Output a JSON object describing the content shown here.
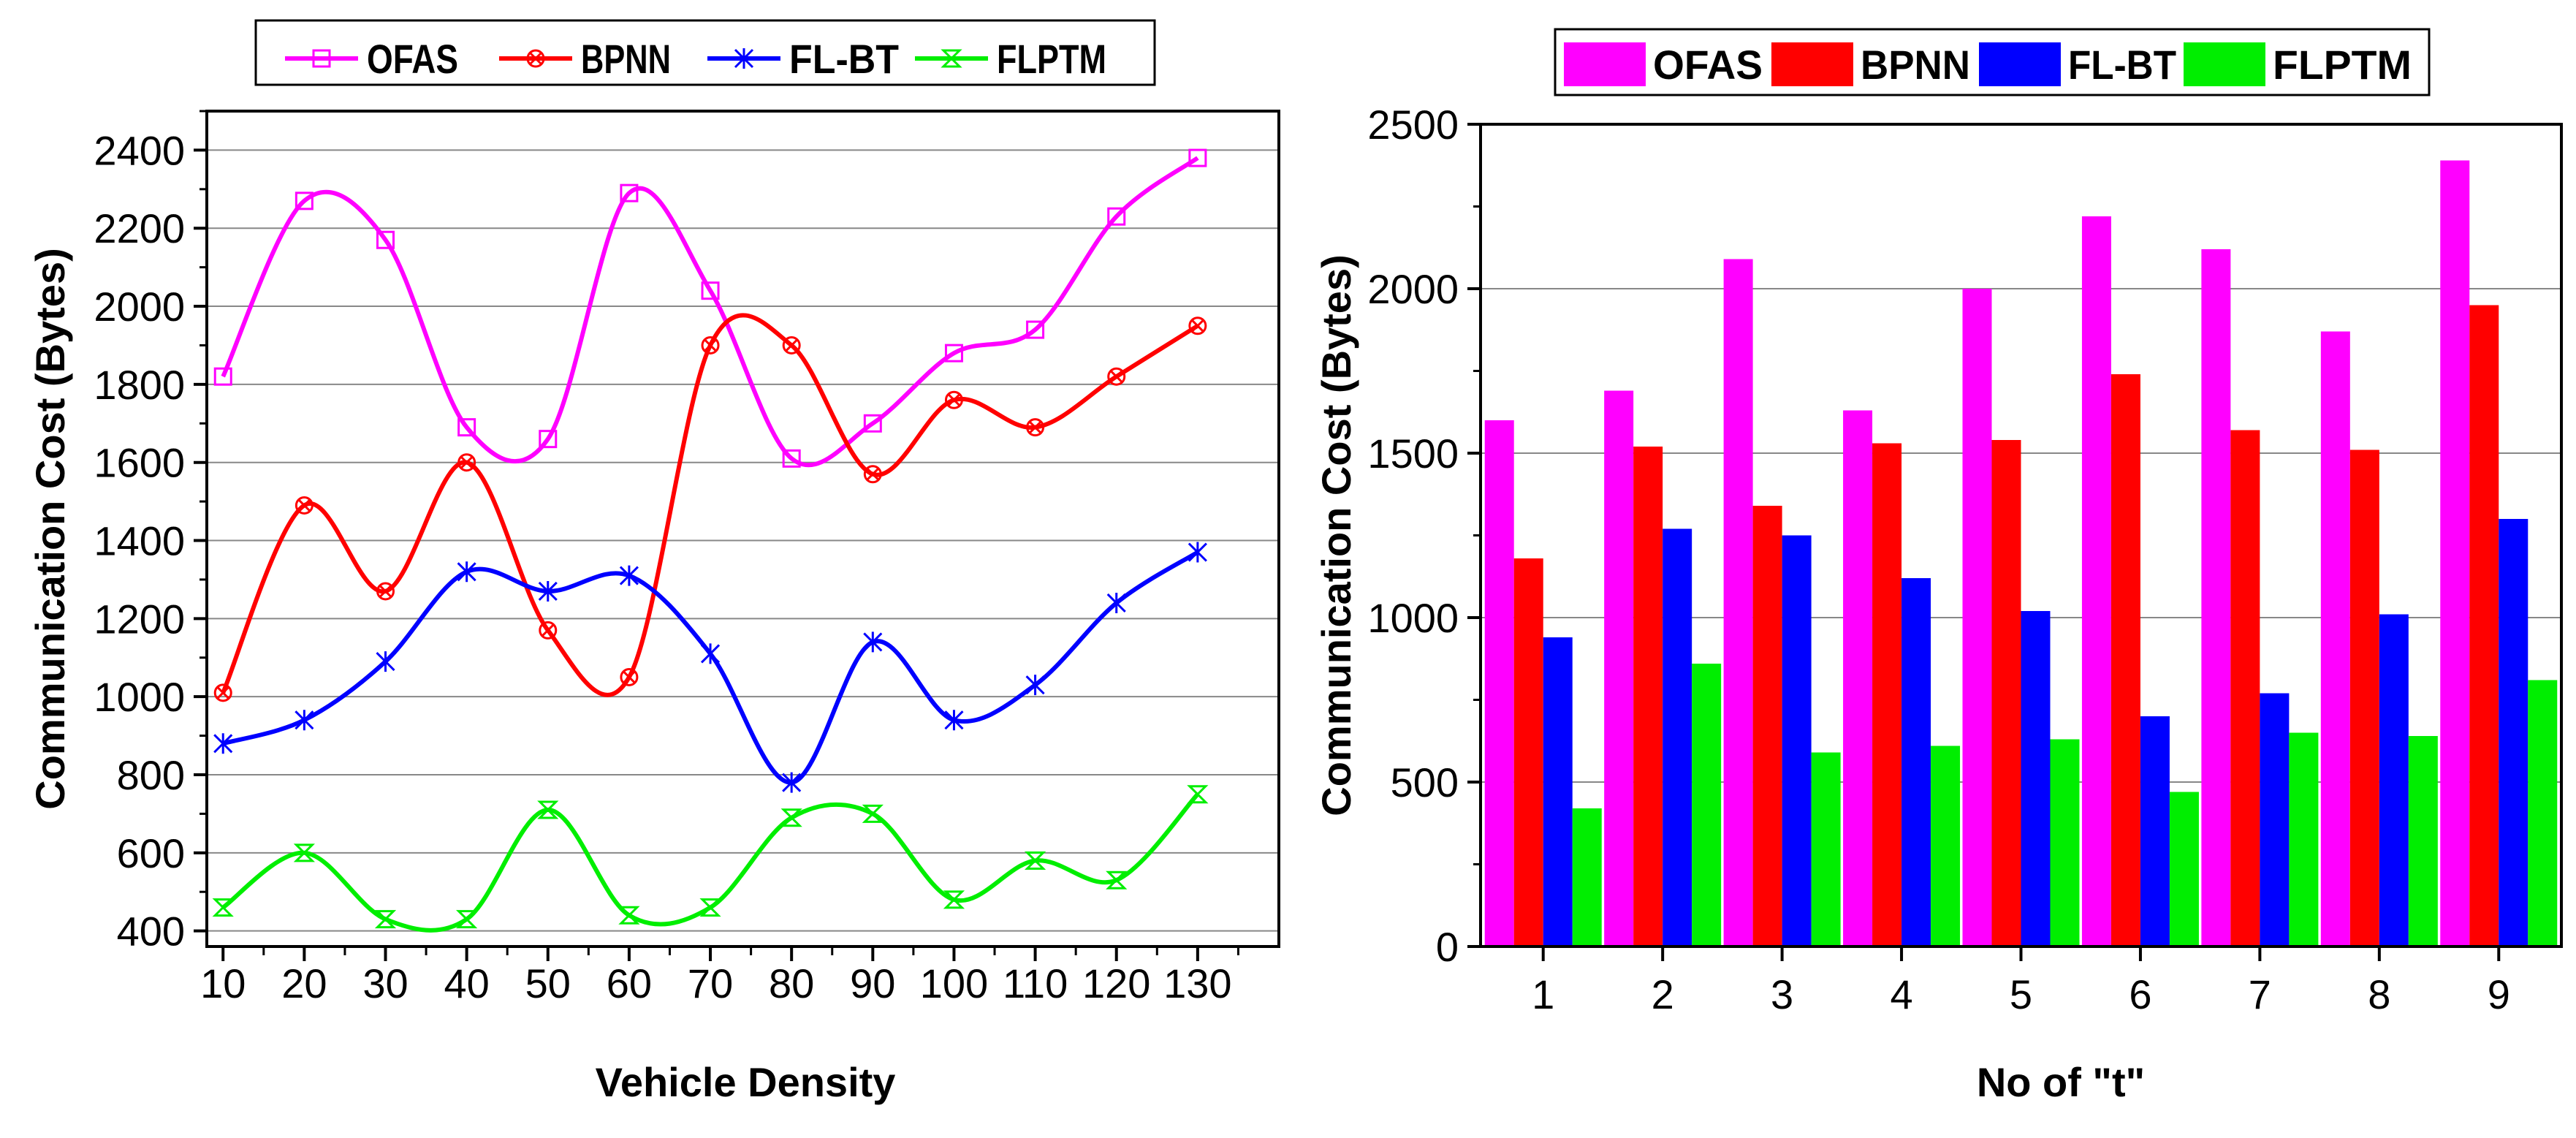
{
  "chart_data": [
    {
      "type": "line",
      "xlabel": "Vehicle Density",
      "ylabel": "Communication Cost (Bytes)",
      "x": [
        10,
        20,
        30,
        40,
        50,
        60,
        70,
        80,
        90,
        100,
        110,
        120,
        130
      ],
      "xlim": [
        8,
        140
      ],
      "ylim": [
        360,
        2500
      ],
      "xticks": [
        10,
        20,
        30,
        40,
        50,
        60,
        70,
        80,
        90,
        100,
        110,
        120,
        130
      ],
      "yticks": [
        400,
        600,
        800,
        1000,
        1200,
        1400,
        1600,
        1800,
        2000,
        2200,
        2400
      ],
      "grid": true,
      "legend": "top",
      "series": [
        {
          "name": "OFAS",
          "color": "#ff00ff",
          "marker": "square",
          "values": [
            1820,
            2270,
            2170,
            1690,
            1660,
            2290,
            2040,
            1610,
            1700,
            1880,
            1940,
            2230,
            2380
          ]
        },
        {
          "name": "BPNN",
          "color": "#ff0000",
          "marker": "circle-x",
          "values": [
            1010,
            1490,
            1270,
            1600,
            1170,
            1050,
            1900,
            1900,
            1570,
            1760,
            1690,
            1820,
            1950
          ]
        },
        {
          "name": "FL-BT",
          "color": "#0000ff",
          "marker": "star",
          "values": [
            880,
            940,
            1090,
            1320,
            1270,
            1310,
            1110,
            780,
            1140,
            940,
            1030,
            1240,
            1370
          ]
        },
        {
          "name": "FLPTM",
          "color": "#00ee00",
          "marker": "hourglass",
          "values": [
            460,
            600,
            430,
            430,
            710,
            440,
            460,
            690,
            700,
            480,
            580,
            530,
            750
          ]
        }
      ]
    },
    {
      "type": "bar",
      "xlabel": "No of \"t\"",
      "ylabel": "Communication Cost (Bytes)",
      "categories": [
        "1",
        "2",
        "3",
        "4",
        "5",
        "6",
        "7",
        "8",
        "9"
      ],
      "ylim": [
        0,
        2500
      ],
      "yticks": [
        0,
        500,
        1000,
        1500,
        2000,
        2500
      ],
      "grid": true,
      "legend": "top",
      "series": [
        {
          "name": "OFAS",
          "color": "#ff00ff",
          "values": [
            1600,
            1690,
            2090,
            1630,
            2000,
            2220,
            2120,
            1870,
            2390
          ]
        },
        {
          "name": "BPNN",
          "color": "#ff0000",
          "values": [
            1180,
            1520,
            1340,
            1530,
            1540,
            1740,
            1570,
            1510,
            1950
          ]
        },
        {
          "name": "FL-BT",
          "color": "#0000ff",
          "values": [
            940,
            1270,
            1250,
            1120,
            1020,
            700,
            770,
            1010,
            1300
          ]
        },
        {
          "name": "FLPTM",
          "color": "#00ee00",
          "values": [
            420,
            860,
            590,
            610,
            630,
            470,
            650,
            640,
            810
          ]
        }
      ]
    }
  ]
}
